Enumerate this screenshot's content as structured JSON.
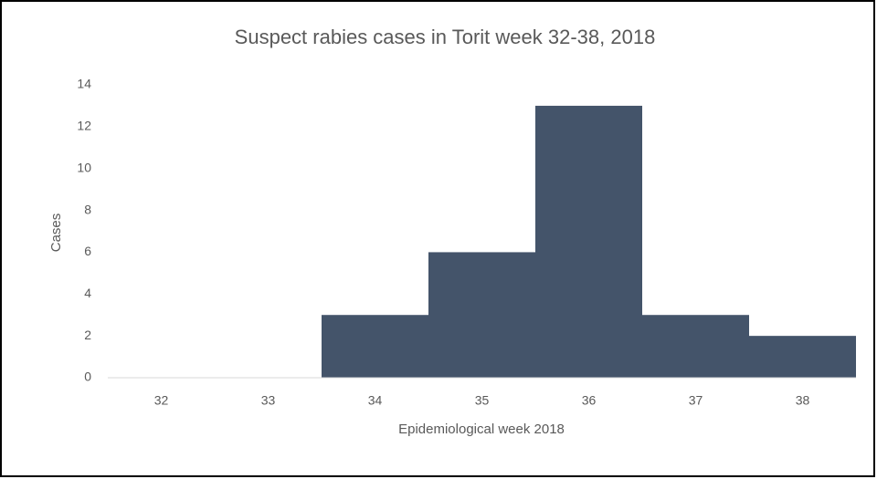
{
  "chart_data": {
    "type": "bar",
    "title": "Suspect rabies cases in Torit week 32-38, 2018",
    "x_label": "Epidemiological week 2018",
    "y_label": "Cases",
    "categories": [
      "32",
      "33",
      "34",
      "35",
      "36",
      "37",
      "38"
    ],
    "values": [
      0,
      0,
      3,
      6,
      13,
      3,
      2
    ],
    "color": "#44546a",
    "ylim": [
      0,
      14
    ],
    "yticks": [
      0,
      2,
      4,
      6,
      8,
      10,
      12,
      14
    ],
    "grid": false
  }
}
